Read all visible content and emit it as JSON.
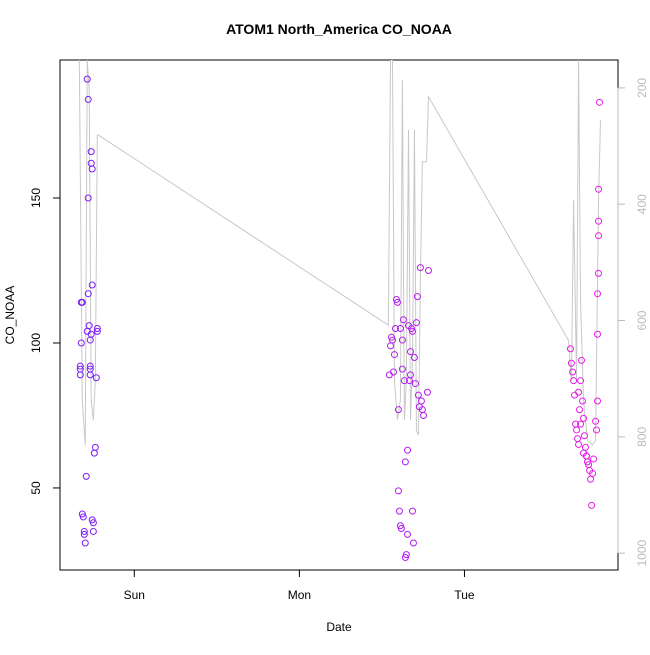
{
  "chart_data": {
    "type": "scatter",
    "title": "ATOM1 North_America CO_NOAA",
    "x_label": "Date",
    "y_label": "CO_NOAA",
    "xlim": [
      -0.45,
      2.93
    ],
    "xticks": [
      {
        "value": 0,
        "label": "Sun"
      },
      {
        "value": 1,
        "label": "Mon"
      },
      {
        "value": 2,
        "label": "Tue"
      }
    ],
    "ylim": [
      21.7,
      197.6
    ],
    "yticks": [
      50,
      100,
      150
    ],
    "y2lim": [
      1029,
      152
    ],
    "y2ticks": [
      200,
      400,
      600,
      800,
      1000
    ],
    "series": [
      {
        "color": "#7a1cf6",
        "x": [
          -0.327,
          -0.327,
          -0.327,
          -0.321,
          -0.321,
          -0.315,
          -0.315,
          -0.309,
          -0.303,
          -0.303,
          -0.297,
          -0.291,
          -0.285,
          -0.285,
          -0.279,
          -0.279,
          -0.279,
          -0.273,
          -0.267,
          -0.267,
          -0.267,
          -0.261,
          -0.261,
          -0.255,
          -0.255,
          -0.255,
          -0.248,
          -0.248,
          -0.242,
          -0.236,
          -0.23,
          -0.224,
          -0.224,
          -0.267,
          -0.261
        ],
        "values": [
          92,
          91,
          89,
          100,
          114,
          114,
          41,
          40,
          35,
          34,
          31,
          54,
          104,
          191,
          184,
          150,
          117,
          106,
          101,
          92,
          91,
          166,
          162,
          160,
          120,
          39,
          38,
          35,
          62,
          64,
          88,
          104,
          105,
          89,
          103
        ]
      },
      {
        "color": "#b41ef0",
        "x": [
          1.545,
          1.552,
          1.558,
          1.564,
          1.57,
          1.576,
          1.582,
          1.588,
          1.594,
          1.6,
          1.606,
          1.612,
          1.618,
          1.624,
          1.63,
          1.636,
          1.642,
          1.648,
          1.655,
          1.661,
          1.667,
          1.673,
          1.679,
          1.685,
          1.691,
          1.697,
          1.703,
          1.709,
          1.715,
          1.721,
          1.727,
          1.733,
          1.739,
          1.745,
          1.752,
          1.776,
          1.782,
          1.6,
          1.612,
          1.624,
          1.642,
          1.655,
          1.673,
          1.685
        ],
        "values": [
          89,
          99,
          102,
          101,
          90,
          96,
          105,
          115,
          114,
          49,
          42,
          37,
          36,
          101,
          108,
          87,
          59,
          27,
          63,
          106,
          87,
          97,
          105,
          42,
          31,
          95,
          86,
          107,
          116,
          82,
          78,
          126,
          80,
          77,
          75,
          83,
          125,
          77,
          105,
          91,
          26,
          34,
          89,
          104
        ]
      },
      {
        "color": "#e81ce6",
        "x": [
          2.642,
          2.648,
          2.655,
          2.661,
          2.667,
          2.673,
          2.679,
          2.685,
          2.691,
          2.697,
          2.703,
          2.709,
          2.715,
          2.721,
          2.727,
          2.733,
          2.739,
          2.745,
          2.752,
          2.758,
          2.764,
          2.77,
          2.776,
          2.782,
          2.794,
          2.8,
          2.806,
          2.806,
          2.806,
          2.812,
          2.812,
          2.812,
          2.812,
          2.818,
          2.691,
          2.703,
          2.721,
          2.739
        ],
        "values": [
          98,
          93,
          90,
          87,
          82,
          72,
          70,
          67,
          65,
          77,
          87,
          94,
          80,
          74,
          68,
          64,
          61,
          59,
          58,
          56,
          53,
          44,
          55,
          60,
          73,
          70,
          80,
          103,
          117,
          124,
          137,
          142,
          153,
          183,
          83,
          72,
          62,
          61
        ]
      },
      {
        "color": "#c8c8c8",
        "axis": "y2",
        "type": "line",
        "x": [
          -0.333,
          -0.315,
          -0.297,
          -0.285,
          -0.273,
          -0.261,
          -0.248,
          -0.236,
          -0.224,
          -0.218,
          1.539,
          1.552,
          1.564,
          1.576,
          1.594,
          1.612,
          1.624,
          1.636,
          1.648,
          1.661,
          1.673,
          1.685,
          1.697,
          1.709,
          1.721,
          1.733,
          1.745,
          1.77,
          1.782,
          2.63,
          2.648,
          2.661,
          2.679,
          2.691,
          2.703,
          2.721,
          2.745,
          2.776,
          2.794,
          2.812,
          2.824
        ],
        "values": [
          152,
          737,
          814,
          152,
          203,
          737,
          771,
          703,
          281,
          281,
          608,
          152,
          152,
          703,
          771,
          737,
          186,
          771,
          703,
          272,
          771,
          668,
          272,
          789,
          797,
          530,
          327,
          327,
          215,
          634,
          703,
          393,
          703,
          152,
          565,
          737,
          806,
          814,
          806,
          393,
          255
        ]
      }
    ]
  }
}
